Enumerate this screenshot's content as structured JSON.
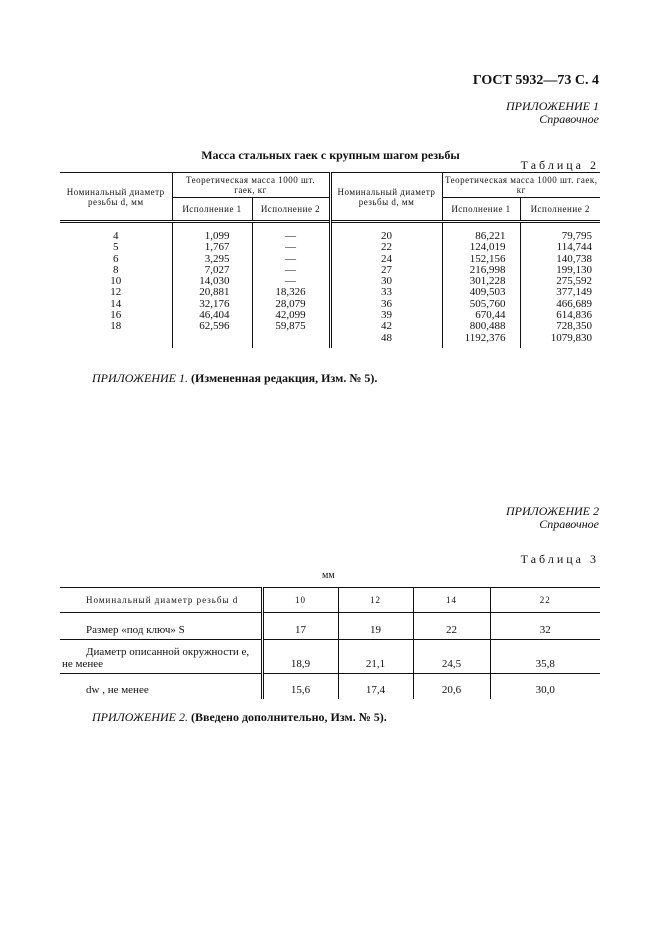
{
  "header": {
    "doc_ref": "ГОСТ 5932—73 С. 4"
  },
  "appendix1": {
    "label": "ПРИЛОЖЕНИЕ 1",
    "type": "Справочное",
    "title": "Масса стальных гаек с крупным шагом резьбы",
    "table_label": "Таблица 2",
    "table": {
      "col_diameter": "Номинальный диаметр резьбы d, мм",
      "col_mass": "Теоретическая масса 1000 шт. гаек, кг",
      "col_exec1": "Исполнение 1",
      "col_exec2": "Исполнение 2",
      "left": {
        "d": "4\n5\n6\n8\n10\n12\n14\n16\n18",
        "e1": "1,099\n1,767\n3,295\n7,027\n14,030\n20,881\n32,176\n46,404\n62,596",
        "e2": "—\n—\n—\n—\n—\n18,326\n28,079\n42,099\n59,875"
      },
      "right": {
        "d": "20\n22\n24\n27\n30\n33\n36\n39\n42\n48",
        "e1": "86,221\n124,019\n152,156\n216,998\n301,228\n409,503\n505,760\n670,44\n800,488\n1192,376",
        "e2": "79,795\n114,744\n140,738\n199,130\n275,592\n377,149\n466,689\n614,836\n728,350\n1079,830"
      }
    },
    "note_label": "ПРИЛОЖЕНИЕ 1.",
    "note_text": "(Измененная редакция, Изм. № 5)."
  },
  "appendix2": {
    "label": "ПРИЛОЖЕНИЕ 2",
    "type": "Справочное",
    "table_label": "Таблица 3",
    "unit": "мм",
    "table": {
      "header": [
        "Номинальный диаметр резьбы d",
        "10",
        "12",
        "14",
        "22"
      ],
      "rows": [
        [
          "Размер «под ключ» S",
          "17",
          "19",
          "22",
          "32"
        ],
        [
          "Диаметр описанной окружности e, не менее",
          "18,9",
          "21,1",
          "24,5",
          "35,8"
        ],
        [
          "dw , не менее",
          "15,6",
          "17,4",
          "20,6",
          "30,0"
        ]
      ]
    },
    "note_label": "ПРИЛОЖЕНИЕ 2.",
    "note_text": "(Введено дополнительно, Изм. № 5)."
  }
}
